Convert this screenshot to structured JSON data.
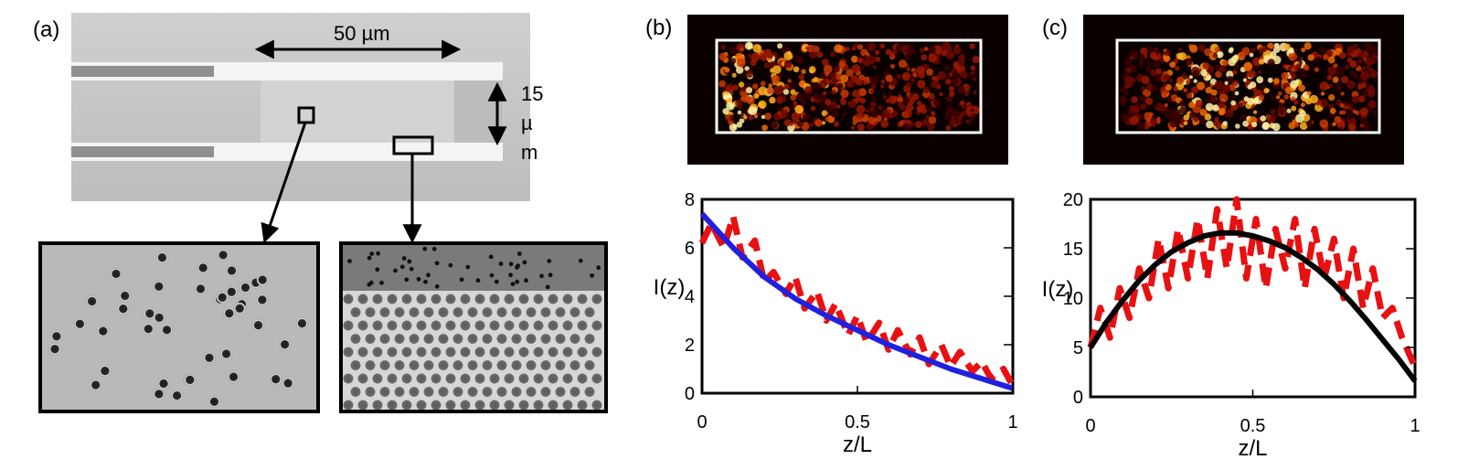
{
  "panels": {
    "a": {
      "label": "(a)",
      "scale_bar_horizontal": "50 µm",
      "scale_bar_vertical": [
        "15",
        "µ",
        "m"
      ]
    },
    "b": {
      "label": "(b)",
      "chart_data": {
        "type": "line",
        "xlabel": "z/L",
        "ylabel": "I(z)",
        "xlim": [
          0,
          1
        ],
        "ylim": [
          0,
          8
        ],
        "x_ticks": [
          "0",
          "0.5",
          "1"
        ],
        "y_ticks": [
          "0",
          "2",
          "4",
          "6",
          "8"
        ],
        "grid": false,
        "series": [
          {
            "style": "dashed",
            "color": "#e81010",
            "x": [
              0,
              0.03,
              0.07,
              0.1,
              0.13,
              0.17,
              0.2,
              0.23,
              0.27,
              0.3,
              0.33,
              0.37,
              0.4,
              0.43,
              0.47,
              0.5,
              0.53,
              0.57,
              0.6,
              0.63,
              0.67,
              0.7,
              0.73,
              0.77,
              0.8,
              0.83,
              0.87,
              0.9,
              0.93,
              0.97,
              1.0
            ],
            "y": [
              6.2,
              7.0,
              6.0,
              7.3,
              5.6,
              6.3,
              4.6,
              5.0,
              4.1,
              4.8,
              3.5,
              4.2,
              3.0,
              3.7,
              2.4,
              3.2,
              2.1,
              2.9,
              1.8,
              2.6,
              1.6,
              2.3,
              1.2,
              2.0,
              1.1,
              1.7,
              0.9,
              1.3,
              0.6,
              1.0,
              0.3
            ]
          },
          {
            "style": "solid",
            "color": "#2020e0",
            "x": [
              0,
              0.1,
              0.2,
              0.3,
              0.4,
              0.5,
              0.6,
              0.7,
              0.8,
              0.9,
              1.0
            ],
            "y": [
              7.4,
              6.0,
              4.8,
              3.9,
              3.2,
              2.6,
              2.0,
              1.5,
              1.0,
              0.6,
              0.2
            ]
          }
        ]
      }
    },
    "c": {
      "label": "(c)",
      "chart_data": {
        "type": "line",
        "xlabel": "z/L",
        "ylabel": "I(z)",
        "xlim": [
          0,
          1
        ],
        "ylim": [
          0,
          20
        ],
        "x_ticks": [
          "0",
          "0.5",
          "1"
        ],
        "y_ticks": [
          "0",
          "5",
          "10",
          "15",
          "20"
        ],
        "grid": false,
        "series": [
          {
            "style": "dashed",
            "color": "#e81010",
            "x": [
              0,
              0.03,
              0.06,
              0.09,
              0.12,
              0.15,
              0.18,
              0.21,
              0.24,
              0.27,
              0.3,
              0.33,
              0.36,
              0.39,
              0.42,
              0.45,
              0.48,
              0.51,
              0.54,
              0.57,
              0.6,
              0.63,
              0.66,
              0.69,
              0.72,
              0.75,
              0.78,
              0.81,
              0.84,
              0.87,
              0.9,
              0.93,
              0.96,
              1.0
            ],
            "y": [
              5,
              9,
              6,
              11,
              8,
              13,
              10,
              16,
              11,
              17,
              12,
              18,
              12,
              19,
              13,
              20,
              12,
              18,
              11,
              17,
              13,
              18,
              11,
              17,
              12,
              16,
              10,
              15,
              9,
              13,
              8,
              9,
              6,
              3
            ]
          },
          {
            "style": "solid",
            "color": "#000000",
            "x": [
              0,
              0.05,
              0.1,
              0.15,
              0.2,
              0.25,
              0.3,
              0.35,
              0.4,
              0.45,
              0.5,
              0.55,
              0.6,
              0.65,
              0.7,
              0.75,
              0.8,
              0.85,
              0.9,
              0.95,
              1.0
            ],
            "y": [
              5.0,
              7.6,
              9.8,
              11.8,
              13.4,
              14.7,
              15.6,
              16.3,
              16.6,
              16.6,
              16.3,
              15.8,
              15.1,
              14.1,
              12.9,
              11.4,
              9.7,
              7.8,
              5.8,
              3.8,
              1.6
            ]
          }
        ]
      }
    }
  },
  "colors": {
    "sem_background": "#c8c8c8",
    "electrode": "#f4f4f4",
    "heatmap_background": "#0b0000",
    "dashed_series": "#e81010",
    "fit_b": "#2020e0",
    "fit_c": "#000000"
  }
}
